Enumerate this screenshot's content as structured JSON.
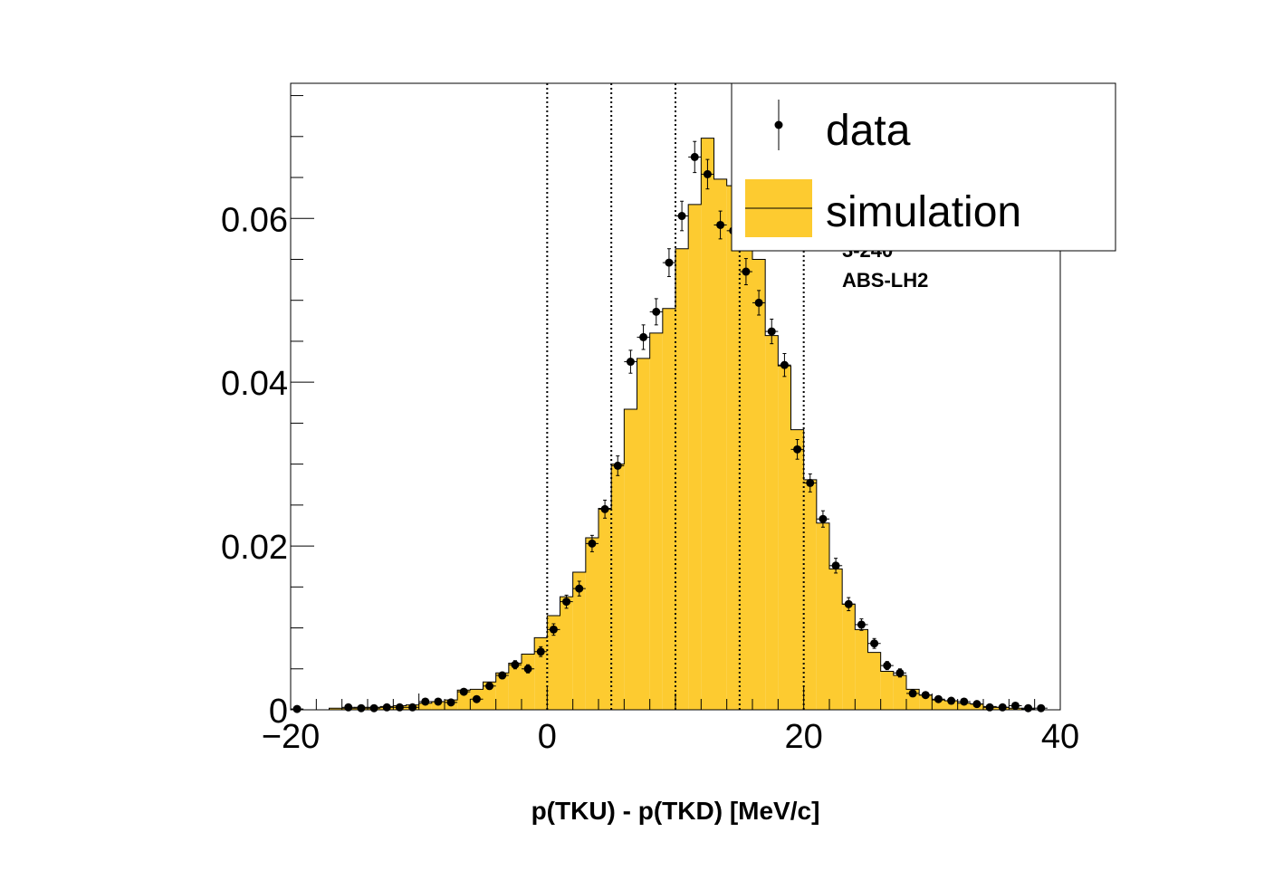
{
  "chart_data": {
    "type": "histogram",
    "xlabel": "p(TKU) - p(TKD) [MeV/c]",
    "ylabel": "",
    "xlim": [
      -20,
      40
    ],
    "ylim": [
      0,
      0.0765
    ],
    "x_ticks": [
      -20,
      0,
      20,
      40
    ],
    "x_tick_labels": [
      "−20",
      "0",
      "20",
      "40"
    ],
    "y_ticks": [
      0,
      0.02,
      0.04,
      0.06
    ],
    "y_tick_labels": [
      "0",
      "0.02",
      "0.04",
      "0.06"
    ],
    "bin_width": 1,
    "grid": false,
    "legend_position": "top-right",
    "vertical_lines": [
      0,
      5,
      10,
      15,
      20
    ],
    "annotations": [
      "3-240",
      "ABS-LH2"
    ],
    "series": [
      {
        "name": "data",
        "style": "points-with-errors",
        "color": "#000000",
        "x": [
          -19.5,
          -15.5,
          -14.5,
          -13.5,
          -12.5,
          -11.5,
          -10.5,
          -9.5,
          -8.5,
          -7.5,
          -6.5,
          -5.5,
          -4.5,
          -3.5,
          -2.5,
          -1.5,
          -0.5,
          0.5,
          1.5,
          2.5,
          3.5,
          4.5,
          5.5,
          6.5,
          7.5,
          8.5,
          9.5,
          10.5,
          11.5,
          12.5,
          13.5,
          14.5,
          15.5,
          16.5,
          17.5,
          18.5,
          19.5,
          20.5,
          21.5,
          22.5,
          23.5,
          24.5,
          25.5,
          26.5,
          27.5,
          28.5,
          29.5,
          30.5,
          31.5,
          32.5,
          33.5,
          34.5,
          35.5,
          36.5,
          37.5,
          38.5
        ],
        "y": [
          0.0001,
          0.0003,
          0.0002,
          0.0002,
          0.0003,
          0.0003,
          0.0003,
          0.001,
          0.001,
          0.0009,
          0.0022,
          0.0013,
          0.0029,
          0.0042,
          0.0055,
          0.005,
          0.0071,
          0.0098,
          0.0132,
          0.0148,
          0.0203,
          0.0245,
          0.0298,
          0.0425,
          0.0455,
          0.0486,
          0.0546,
          0.0603,
          0.0675,
          0.0654,
          0.0592,
          0.0585,
          0.0535,
          0.0497,
          0.0462,
          0.0421,
          0.0318,
          0.0277,
          0.0233,
          0.0176,
          0.0129,
          0.0104,
          0.0081,
          0.0054,
          0.0045,
          0.002,
          0.0018,
          0.0013,
          0.0011,
          0.001,
          0.0007,
          0.0003,
          0.0003,
          0.0005,
          0.0002,
          0.0002
        ],
        "yerr": [
          0.0001,
          0.0001,
          0.0001,
          0.0001,
          0.0001,
          0.0001,
          0.0001,
          0.0002,
          0.0002,
          0.0002,
          0.0003,
          0.0003,
          0.0004,
          0.0004,
          0.0005,
          0.0005,
          0.0006,
          0.0007,
          0.0008,
          0.0009,
          0.001,
          0.0011,
          0.0012,
          0.0014,
          0.0015,
          0.0016,
          0.0017,
          0.0018,
          0.0019,
          0.0018,
          0.0017,
          0.0017,
          0.0016,
          0.0015,
          0.0015,
          0.0014,
          0.0012,
          0.0011,
          0.001,
          0.0009,
          0.0008,
          0.0007,
          0.0006,
          0.0005,
          0.0005,
          0.0003,
          0.0003,
          0.0003,
          0.0002,
          0.0002,
          0.0002,
          0.0001,
          0.0001,
          0.0001,
          0.0001,
          0.0001
        ]
      },
      {
        "name": "simulation",
        "style": "filled-step",
        "color": "#fdcb30",
        "bin_edges": [
          -17,
          -16,
          -15,
          -14,
          -13,
          -12,
          -11,
          -10,
          -9,
          -8,
          -7,
          -6,
          -5,
          -4,
          -3,
          -2,
          -1,
          0,
          1,
          2,
          3,
          4,
          5,
          6,
          7,
          8,
          9,
          10,
          11,
          12,
          13,
          14,
          15,
          16,
          17,
          18,
          19,
          20,
          21,
          22,
          23,
          24,
          25,
          26,
          27,
          28,
          29,
          30,
          31,
          32,
          33,
          34,
          35,
          36,
          37,
          38
        ],
        "values": [
          0.0002,
          0.0002,
          0.0003,
          0.0003,
          0.0004,
          0.0005,
          0.0006,
          0.0008,
          0.001,
          0.0012,
          0.0024,
          0.0025,
          0.0034,
          0.0045,
          0.0057,
          0.0068,
          0.0088,
          0.0115,
          0.0138,
          0.0168,
          0.021,
          0.0246,
          0.03,
          0.0367,
          0.0429,
          0.046,
          0.049,
          0.0563,
          0.0617,
          0.0698,
          0.0648,
          0.064,
          0.057,
          0.055,
          0.0457,
          0.042,
          0.0342,
          0.0281,
          0.0228,
          0.0172,
          0.0129,
          0.0098,
          0.007,
          0.0047,
          0.0042,
          0.0025,
          0.0018,
          0.0012,
          0.0011,
          0.0008,
          0.0007,
          0.0004,
          0.0003,
          0.0002,
          0.0001
        ]
      }
    ]
  },
  "legend": {
    "items": [
      {
        "label": "data",
        "marker": "point"
      },
      {
        "label": "simulation",
        "marker": "box"
      }
    ]
  },
  "colors": {
    "simulation_fill": "#fdcb30",
    "data_marker": "#000000",
    "frame": "#000000"
  }
}
